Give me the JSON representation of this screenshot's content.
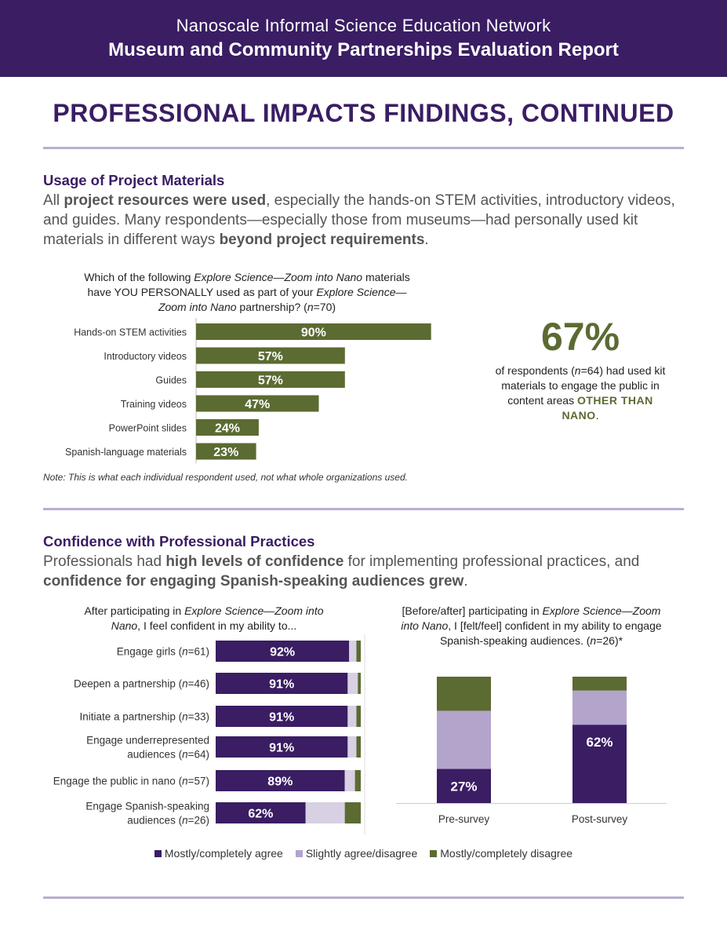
{
  "header": {
    "org": "Nanoscale Informal Science Education Network",
    "report": "Museum and Community Partnerships Evaluation Report"
  },
  "page_title": "PROFESSIONAL IMPACTS FINDINGS, CONTINUED",
  "section1": {
    "title": "Usage of Project Materials",
    "body_parts": [
      {
        "text": "All ",
        "bold": false
      },
      {
        "text": "project resources were used",
        "bold": true
      },
      {
        "text": ", especially the hands-on STEM activities, introductory videos, and guides. Many respondents—especially those from museums—had personally used kit materials in different ways ",
        "bold": false
      },
      {
        "text": "beyond project requirements",
        "bold": true
      },
      {
        "text": ".",
        "bold": false
      }
    ],
    "question_parts": [
      {
        "text": "Which of the following ",
        "italic": false
      },
      {
        "text": "Explore Science—Zoom into Nano",
        "italic": true
      },
      {
        "text": " materials have YOU PERSONALLY used as part of your ",
        "italic": false
      },
      {
        "text": "Explore Science—Zoom into Nano",
        "italic": true
      },
      {
        "text": " partnership? (",
        "italic": false
      },
      {
        "text": "n",
        "italic": true
      },
      {
        "text": "=70)",
        "italic": false
      }
    ],
    "note": "Note: This is what each individual respondent used, not what whole organizations used.",
    "callout": {
      "percent": "67%",
      "text_parts": [
        {
          "text": "of respondents (",
          "italic": false
        },
        {
          "text": "n",
          "italic": true
        },
        {
          "text": "=64) had used kit materials to engage the public in content areas",
          "italic": false
        }
      ],
      "highlight": "OTHER THAN NANO",
      "end": "."
    }
  },
  "section2": {
    "title": "Confidence with Professional Practices",
    "body_parts": [
      {
        "text": "Professionals had ",
        "bold": false
      },
      {
        "text": "high levels of confidence",
        "bold": true
      },
      {
        "text": " for implementing professional practices, and ",
        "bold": false
      },
      {
        "text": "confidence for engaging Spanish-speaking audiences grew",
        "bold": true
      },
      {
        "text": ".",
        "bold": false
      }
    ],
    "question_left_parts": [
      {
        "text": "After participating in ",
        "italic": false
      },
      {
        "text": "Explore Science—Zoom into Nano",
        "italic": true
      },
      {
        "text": ", I feel confident in my ability to...",
        "italic": false
      }
    ],
    "question_right_parts": [
      {
        "text": "[Before/after] participating in ",
        "italic": false
      },
      {
        "text": "Explore Science—Zoom into Nano",
        "italic": true
      },
      {
        "text": ", I [felt/feel] confident in my ability to engage Spanish-speaking audiences. (",
        "italic": false
      },
      {
        "text": "n",
        "italic": true
      },
      {
        "text": "=26)*",
        "italic": false
      }
    ]
  },
  "legend": [
    {
      "label": "Mostly/completely agree",
      "color": "#3a1d63"
    },
    {
      "label": "Slightly agree/disagree",
      "color": "#b3a4cc"
    },
    {
      "label": "Mostly/completely disagree",
      "color": "#5b6b32"
    }
  ],
  "colors": {
    "purple": "#3a1d63",
    "lavender": "#b3a4cc",
    "light_lavender": "#d8d0e3",
    "olive": "#5b6b32"
  },
  "chart_data": [
    {
      "type": "bar",
      "orientation": "horizontal",
      "categories": [
        "Hands-on STEM activities",
        "Introductory videos",
        "Guides",
        "Training videos",
        "PowerPoint slides",
        "Spanish-language materials"
      ],
      "values": [
        90,
        57,
        57,
        47,
        24,
        23
      ],
      "labels": [
        "90%",
        "57%",
        "57%",
        "47%",
        "24%",
        "23%"
      ],
      "xlim": [
        0,
        100
      ],
      "color": "#5b6b32"
    },
    {
      "type": "bar",
      "orientation": "horizontal",
      "stacked": true,
      "categories": [
        {
          "main": "Engage girls",
          "n": "61"
        },
        {
          "main": "Deepen a partnership",
          "n": "46"
        },
        {
          "main": "Initiate a partnership",
          "n": "33"
        },
        {
          "main": "Engage underrepresented audiences",
          "n": "64"
        },
        {
          "main": "Engage the public in nano",
          "n": "57"
        },
        {
          "main": "Engage Spanish-speaking audiences",
          "n": "26"
        }
      ],
      "series": [
        {
          "name": "Mostly/completely agree",
          "values": [
            92,
            91,
            91,
            91,
            89,
            62
          ]
        },
        {
          "name": "Slightly agree/disagree",
          "values": [
            5,
            7,
            6,
            6,
            7,
            27
          ]
        },
        {
          "name": "Mostly/completely disagree",
          "values": [
            3,
            2,
            3,
            3,
            4,
            11
          ]
        }
      ],
      "labels": [
        "92%",
        "91%",
        "91%",
        "91%",
        "89%",
        "62%"
      ],
      "xlim": [
        0,
        100
      ]
    },
    {
      "type": "bar",
      "orientation": "vertical",
      "stacked": true,
      "categories": [
        "Pre-survey",
        "Post-survey"
      ],
      "series": [
        {
          "name": "Mostly/completely agree",
          "values": [
            27,
            62
          ]
        },
        {
          "name": "Slightly agree/disagree",
          "values": [
            46,
            27
          ]
        },
        {
          "name": "Mostly/completely disagree",
          "values": [
            27,
            11
          ]
        }
      ],
      "labels": [
        "27%",
        "62%"
      ],
      "ylim": [
        0,
        100
      ]
    }
  ]
}
